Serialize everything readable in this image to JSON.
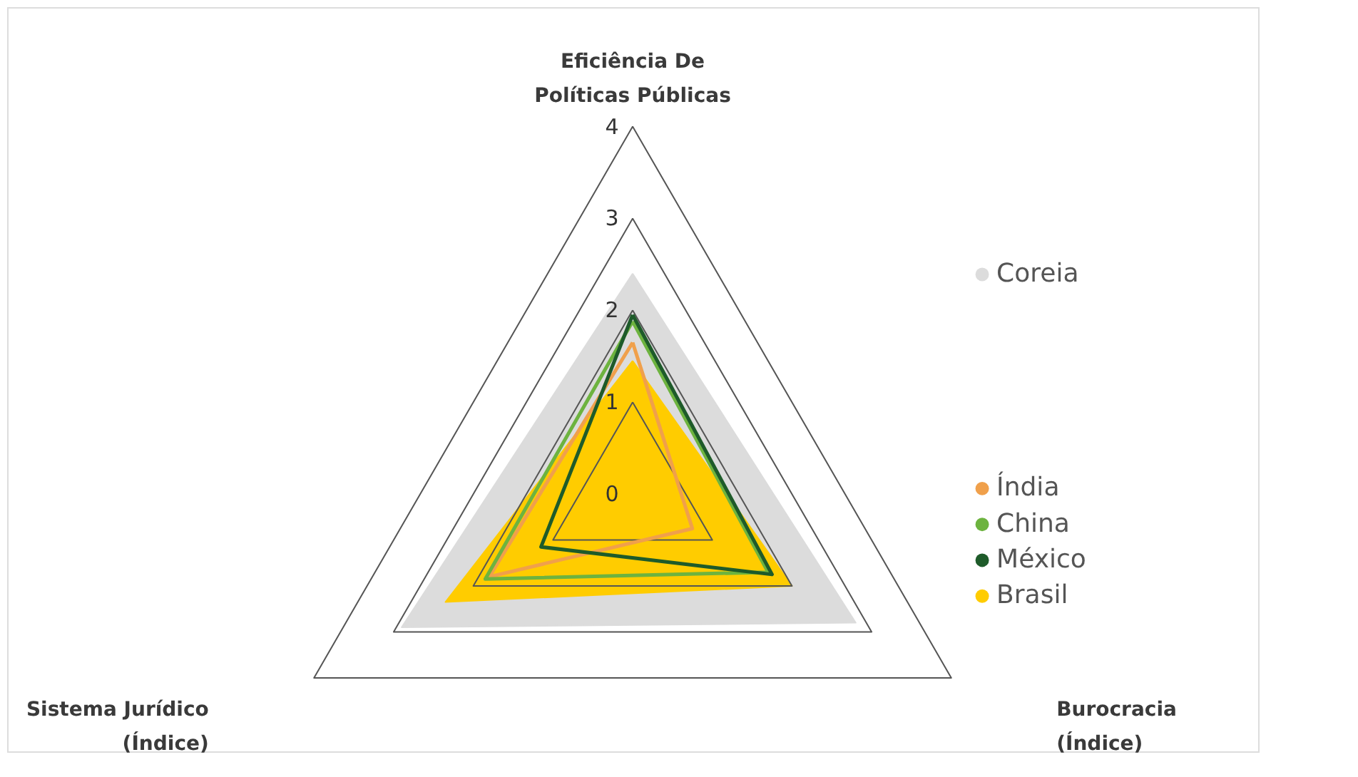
{
  "chart_data": {
    "type": "radar",
    "categories": [
      "Eficiência De Políticas Públicas",
      "Burocracia (Índice)",
      "Sistema Jurídico (Índice)"
    ],
    "ylim": [
      0,
      4
    ],
    "yticks": [
      0,
      1,
      2,
      3,
      4
    ],
    "grid": true,
    "legend": "right",
    "series": [
      {
        "name": "Coreia",
        "type": "area",
        "color": "#dcdcdc",
        "values": [
          2.4,
          2.8,
          2.9
        ]
      },
      {
        "name": "Índia",
        "color": "#f0a04b",
        "values": [
          1.65,
          0.75,
          1.8
        ]
      },
      {
        "name": "China",
        "color": "#6db33f",
        "values": [
          1.88,
          1.7,
          1.85
        ]
      },
      {
        "name": "México",
        "color": "#1e5b2a",
        "values": [
          1.95,
          1.75,
          1.15
        ]
      },
      {
        "name": "Brasil",
        "type": "area",
        "color": "#ffcc00",
        "values": [
          1.45,
          2.0,
          2.35
        ]
      }
    ]
  }
}
